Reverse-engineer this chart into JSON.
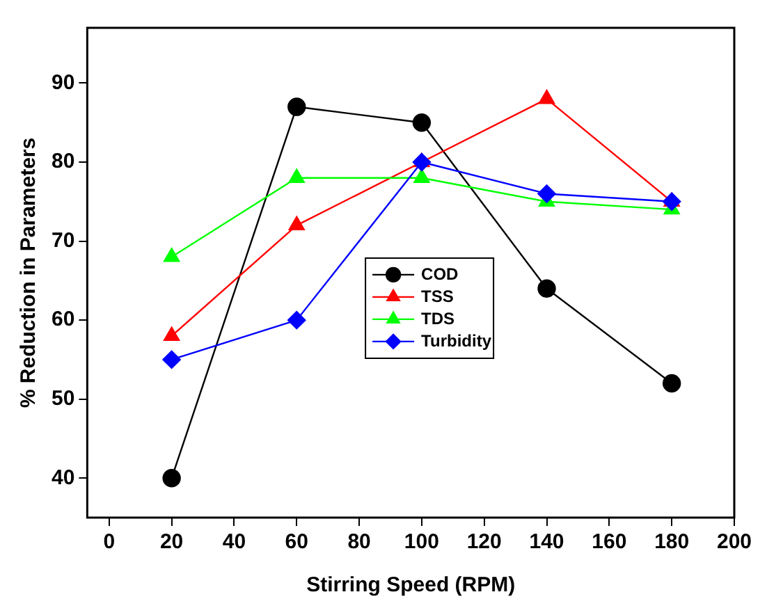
{
  "chart_data": {
    "type": "line",
    "xlabel": "Stirring Speed (RPM)",
    "ylabel": "% Reduction in Parameters",
    "x": [
      20,
      60,
      100,
      140,
      180
    ],
    "series": [
      {
        "name": "COD",
        "color": "#000000",
        "values": [
          40,
          87,
          85,
          64,
          52
        ],
        "marker": "circle"
      },
      {
        "name": "TSS",
        "color": "#ff0000",
        "values": [
          58,
          72,
          80,
          88,
          75
        ],
        "marker": "triangle"
      },
      {
        "name": "TDS",
        "color": "#00ff00",
        "values": [
          68,
          78,
          78,
          75,
          74
        ],
        "marker": "triangle"
      },
      {
        "name": "Turbidity",
        "color": "#0000ff",
        "values": [
          55,
          60,
          80,
          76,
          75
        ],
        "marker": "diamond"
      }
    ],
    "xlim": [
      -7,
      200
    ],
    "xticks": [
      0,
      20,
      40,
      60,
      80,
      100,
      120,
      140,
      160,
      180,
      200
    ],
    "ylim": [
      35,
      97
    ],
    "yticks": [
      40,
      50,
      60,
      70,
      80,
      90
    ],
    "grid": false,
    "legend": "center",
    "line_style": "solid"
  }
}
